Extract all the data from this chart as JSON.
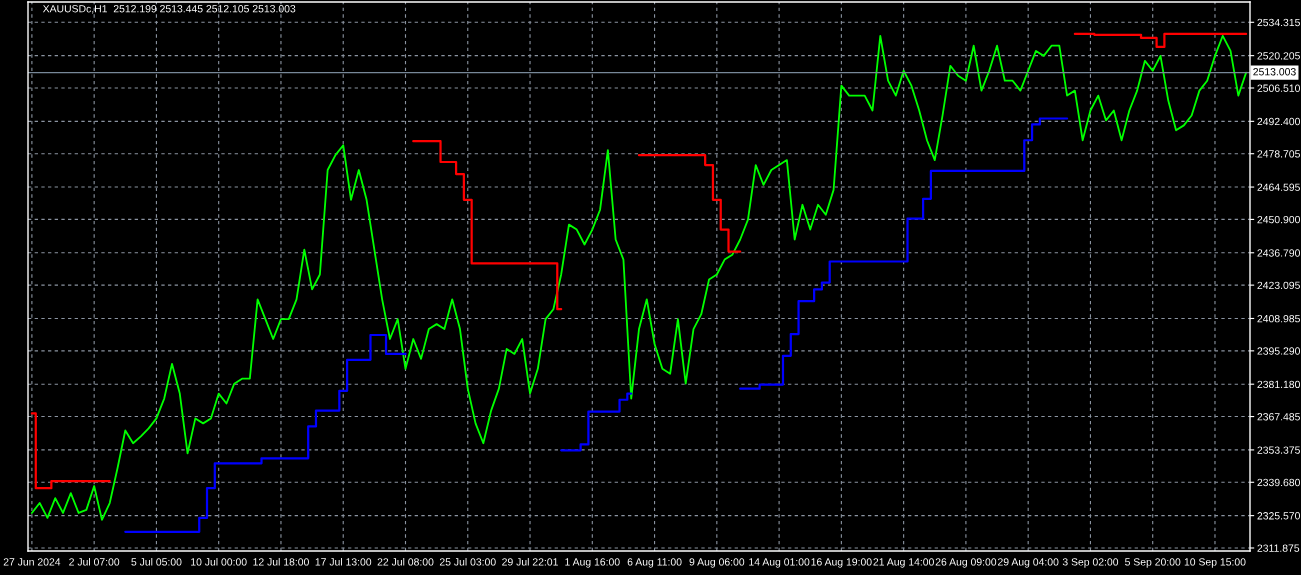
{
  "chart_data": {
    "type": "line",
    "title": "XAUUSDc,H1  2512.199 2513.445 2512.105 2513.003",
    "categories": [
      "27 Jun 2024",
      null,
      null,
      null,
      null,
      null,
      null,
      null,
      "2 Jul 07:00",
      null,
      null,
      null,
      null,
      null,
      null,
      null,
      "5 Jul 05:00",
      null,
      null,
      null,
      null,
      null,
      null,
      null,
      "10 Jul 00:00",
      null,
      null,
      null,
      null,
      null,
      null,
      null,
      "12 Jul 18:00",
      null,
      null,
      null,
      null,
      null,
      null,
      null,
      "17 Jul 13:00",
      null,
      null,
      null,
      null,
      null,
      null,
      null,
      "22 Jul 08:00",
      null,
      null,
      null,
      null,
      null,
      null,
      null,
      "25 Jul 03:00",
      null,
      null,
      null,
      null,
      null,
      null,
      null,
      "29 Jul 22:01",
      null,
      null,
      null,
      null,
      null,
      null,
      null,
      "1 Aug 16:00",
      null,
      null,
      null,
      null,
      null,
      null,
      null,
      "6 Aug 11:00",
      null,
      null,
      null,
      null,
      null,
      null,
      null,
      "9 Aug 06:00",
      null,
      null,
      null,
      null,
      null,
      null,
      null,
      "14 Aug 01:00",
      null,
      null,
      null,
      null,
      null,
      null,
      null,
      "16 Aug 19:00",
      null,
      null,
      null,
      null,
      null,
      null,
      null,
      "21 Aug 14:00",
      null,
      null,
      null,
      null,
      null,
      null,
      null,
      "26 Aug 09:00",
      null,
      null,
      null,
      null,
      null,
      null,
      null,
      "29 Aug 04:00",
      null,
      null,
      null,
      null,
      null,
      null,
      null,
      "3 Sep 02:00",
      null,
      null,
      null,
      null,
      null,
      null,
      null,
      "5 Sep 20:00",
      null,
      null,
      null,
      null,
      null,
      null,
      null,
      "10 Sep 15:00",
      null,
      null,
      null,
      null
    ],
    "ylim": [
      2310.6,
      2542.9
    ],
    "yticks": [
      2311.875,
      {
        "value": 2325.57,
        "label": "2325.570"
      },
      {
        "value": 2339.68,
        "label": "2339.680"
      },
      2353.375,
      2367.485,
      {
        "value": 2381.18,
        "label": "2381.180"
      },
      {
        "value": 2395.29,
        "label": "2395.290"
      },
      2408.985,
      2423.095,
      {
        "value": 2436.79,
        "label": "2436.790"
      },
      {
        "value": 2450.9,
        "label": "2450.900"
      },
      2464.595,
      2478.705,
      {
        "value": 2492.4,
        "label": "2492.400"
      },
      {
        "value": 2506.51,
        "label": "2506.510"
      },
      2520.205,
      2534.315
    ],
    "grid": true,
    "ref_lines": [
      {
        "axis": "y",
        "value": 2513.003,
        "label": "2513.003",
        "color": "#778899"
      }
    ],
    "series": [
      {
        "color": "#00ff00",
        "values": [
          2326.7,
          2330.9,
          2324.6,
          2333.0,
          2326.7,
          2335.1,
          2326.7,
          2328.0,
          2338.1,
          2323.8,
          2330.9,
          2345.6,
          2361.6,
          2356.2,
          2359.1,
          2362.5,
          2366.7,
          2375.1,
          2389.8,
          2377.2,
          2351.9,
          2366.7,
          2364.6,
          2366.7,
          2377.2,
          2373.0,
          2381.4,
          2383.5,
          2383.5,
          2417.1,
          2408.7,
          2400.3,
          2408.7,
          2408.7,
          2417.1,
          2438.1,
          2421.3,
          2427.6,
          2471.8,
          2478.1,
          2482.3,
          2459.2,
          2471.8,
          2459.2,
          2438.1,
          2417.1,
          2400.3,
          2408.7,
          2387.7,
          2400.3,
          2391.9,
          2404.5,
          2406.6,
          2404.5,
          2417.1,
          2404.5,
          2379.3,
          2364.6,
          2356.2,
          2370.0,
          2379.3,
          2396.1,
          2394.0,
          2400.3,
          2377.2,
          2387.7,
          2408.7,
          2412.9,
          2427.6,
          2448.7,
          2446.6,
          2440.3,
          2446.6,
          2455.0,
          2480.2,
          2442.4,
          2433.9,
          2375.1,
          2404.5,
          2417.1,
          2398.2,
          2387.7,
          2385.6,
          2408.7,
          2381.4,
          2404.5,
          2410.8,
          2425.5,
          2427.6,
          2433.9,
          2436.0,
          2442.4,
          2450.8,
          2473.9,
          2465.5,
          2471.8,
          2473.9,
          2476.0,
          2442.4,
          2457.1,
          2446.6,
          2457.1,
          2452.9,
          2463.4,
          2507.5,
          2503.3,
          2503.3,
          2503.3,
          2497.0,
          2528.6,
          2509.6,
          2503.3,
          2513.8,
          2507.5,
          2497.0,
          2484.4,
          2476.0,
          2494.9,
          2515.9,
          2511.7,
          2509.6,
          2524.4,
          2505.4,
          2513.8,
          2524.4,
          2509.6,
          2509.6,
          2505.4,
          2513.8,
          2522.2,
          2520.1,
          2524.4,
          2524.4,
          2503.3,
          2505.4,
          2484.4,
          2497.0,
          2503.3,
          2492.8,
          2497.0,
          2484.4,
          2497.0,
          2505.4,
          2518.0,
          2513.8,
          2520.1,
          2501.2,
          2488.6,
          2490.7,
          2494.9,
          2505.4,
          2509.6,
          2520.1,
          2528.6,
          2522.2,
          2503.3,
          2513.0
        ]
      },
      {
        "type": "step",
        "color": "#ff0000",
        "values": [
          2368.8,
          2337.2,
          2337.2,
          2340.2,
          2340.2,
          2340.2,
          2340.2,
          2340.2,
          2340.2,
          2340.2,
          2340.2,
          null,
          null,
          null,
          null,
          null,
          null,
          null,
          null,
          null,
          null,
          null,
          null,
          null,
          null,
          null,
          null,
          null,
          null,
          null,
          null,
          null,
          null,
          null,
          null,
          null,
          null,
          null,
          null,
          null,
          null,
          null,
          null,
          null,
          null,
          null,
          null,
          null,
          null,
          2484.0,
          2484.0,
          2484.0,
          2484.0,
          2475.2,
          2475.2,
          2470.1,
          2459.2,
          2432.3,
          2432.3,
          2432.3,
          2432.3,
          2432.3,
          2432.3,
          2432.3,
          2432.3,
          2432.3,
          2432.3,
          2432.3,
          2412.9,
          null,
          null,
          null,
          null,
          null,
          null,
          null,
          null,
          null,
          2478.1,
          2478.1,
          2478.1,
          2478.1,
          2478.1,
          2478.1,
          2478.1,
          2478.1,
          2478.1,
          2473.9,
          2459.2,
          2446.6,
          2437.3,
          2437.3,
          null,
          null,
          null,
          null,
          null,
          null,
          null,
          null,
          null,
          null,
          null,
          null,
          null,
          null,
          null,
          null,
          null,
          null,
          null,
          null,
          null,
          null,
          null,
          null,
          null,
          null,
          null,
          null,
          null,
          null,
          null,
          null,
          null,
          null,
          null,
          null,
          null,
          null,
          null,
          null,
          null,
          null,
          2529.4,
          2529.4,
          2529.4,
          2529.0,
          2529.0,
          2529.0,
          2529.0,
          2529.0,
          2529.0,
          2527.7,
          2527.7,
          2523.9,
          2529.4,
          2529.4,
          2529.4,
          2529.4,
          2529.4,
          2529.4,
          2529.4,
          2529.4,
          2529.4,
          2529.4,
          2529.4
        ]
      },
      {
        "type": "step",
        "color": "#0000ff",
        "values": [
          null,
          null,
          null,
          null,
          null,
          null,
          null,
          null,
          null,
          null,
          null,
          null,
          2318.7,
          2318.7,
          2318.7,
          2318.7,
          2318.7,
          2318.7,
          2318.7,
          2318.7,
          2318.7,
          2318.7,
          2324.6,
          2337.2,
          2347.7,
          2347.7,
          2347.7,
          2347.7,
          2347.7,
          2347.7,
          2349.8,
          2349.8,
          2349.8,
          2349.8,
          2349.8,
          2349.8,
          2363.3,
          2370.0,
          2370.0,
          2370.0,
          2378.4,
          2391.5,
          2391.5,
          2391.5,
          2402.0,
          2402.0,
          2394.0,
          2394.0,
          2394.0,
          null,
          null,
          null,
          null,
          null,
          null,
          null,
          null,
          null,
          null,
          null,
          null,
          null,
          null,
          null,
          null,
          null,
          null,
          null,
          2353.2,
          2353.2,
          2353.2,
          2355.7,
          2369.6,
          2369.6,
          2369.6,
          2369.6,
          2374.6,
          2377.2,
          null,
          null,
          null,
          null,
          null,
          null,
          null,
          null,
          null,
          null,
          null,
          null,
          null,
          2379.3,
          2379.3,
          2379.3,
          2381.0,
          2381.0,
          2381.0,
          2393.2,
          2402.4,
          2416.3,
          2416.3,
          2421.3,
          2424.2,
          2433.1,
          2433.1,
          2433.1,
          2433.1,
          2433.1,
          2433.1,
          2433.1,
          2433.1,
          2433.1,
          2433.1,
          2451.2,
          2451.2,
          2459.6,
          2471.4,
          2471.4,
          2471.4,
          2471.4,
          2471.4,
          2471.4,
          2471.4,
          2471.4,
          2471.4,
          2471.4,
          2471.4,
          2471.4,
          2484.4,
          2491.1,
          2493.6,
          2493.6,
          2493.6,
          2493.6,
          null,
          null,
          null,
          null,
          null,
          null,
          null,
          null,
          null,
          null,
          null,
          null,
          null,
          null,
          null,
          null,
          null,
          null,
          null,
          null,
          null,
          null,
          null
        ]
      }
    ]
  }
}
